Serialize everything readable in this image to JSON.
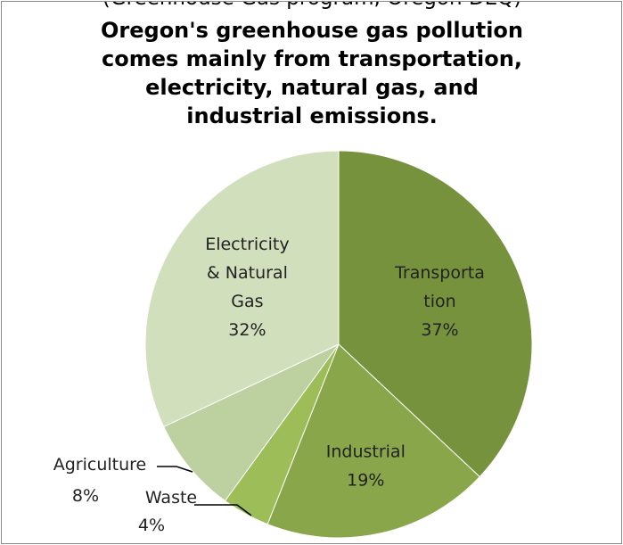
{
  "top_partial_text": "(Greenhouse Gas program, Oregon DEQ)",
  "chart_data": {
    "type": "pie",
    "title": "Oregon's greenhouse gas pollution comes mainly from transportation, electricity, natural gas, and industrial emissions.",
    "title_lines": [
      "Oregon's greenhouse gas pollution",
      "comes mainly from transportation,",
      "electricity, natural gas, and",
      "industrial emissions."
    ],
    "categories": [
      "Transportation",
      "Industrial",
      "Waste",
      "Agriculture",
      "Electricity & Natural Gas"
    ],
    "values": [
      37,
      19,
      4,
      8,
      32
    ],
    "unit": "%",
    "start_angle_deg": 0,
    "direction": "clockwise",
    "legend": "none",
    "colors": [
      "#76923c",
      "#8aa64a",
      "#9cbd58",
      "#bcd0a0",
      "#d2dfbd"
    ],
    "slice_labels": [
      {
        "lines": [
          "Transporta",
          "tion"
        ],
        "percent": "37%"
      },
      {
        "lines": [
          "Industrial"
        ],
        "percent": "19%"
      },
      {
        "lines": [
          "Waste"
        ],
        "percent": "4%"
      },
      {
        "lines": [
          "Agriculture"
        ],
        "percent": "8%"
      },
      {
        "lines": [
          "Electricity",
          "& Natural",
          "Gas"
        ],
        "percent": "32%"
      }
    ]
  }
}
